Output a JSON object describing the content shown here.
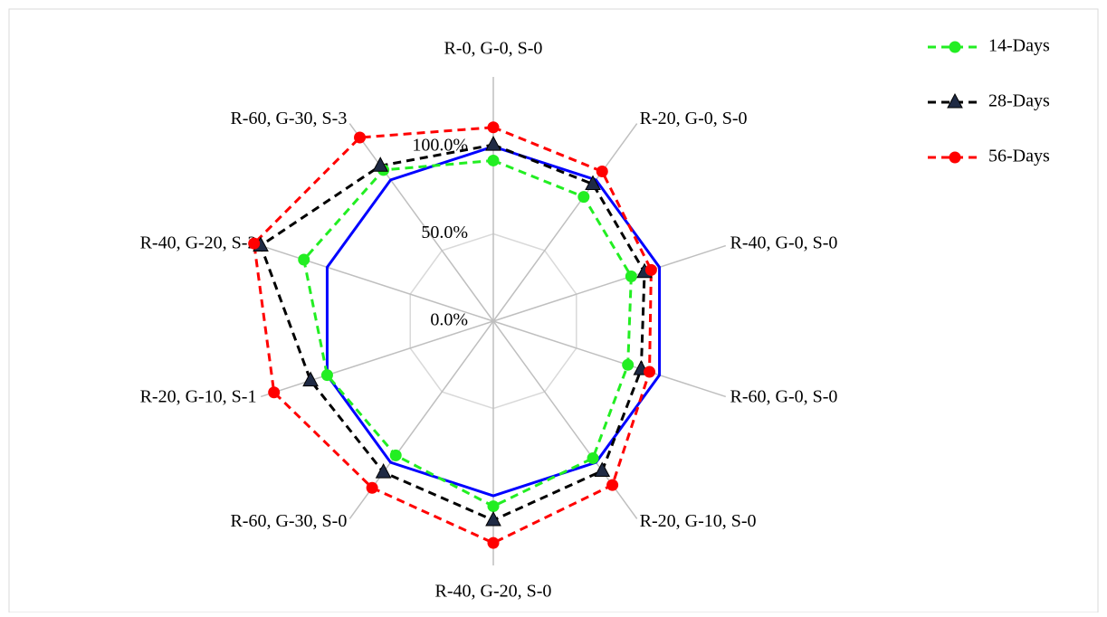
{
  "chart_data": {
    "type": "radar",
    "categories": [
      "R-0, G-0, S-0",
      "R-20, G-0, S-0",
      "R-40, G-0, S-0",
      "R-60, G-0, S-0",
      "R-20, G-10, S-0",
      "R-40, G-20, S-0",
      "R-60, G-30, S-0",
      "R-20, G-10, S-1",
      "R-40, G-20, S-2",
      "R-60, G-30, S-3"
    ],
    "series": [
      {
        "color": "#0000ff",
        "values": [
          100,
          100,
          100,
          100,
          100,
          100,
          100,
          100,
          100,
          100
        ]
      },
      {
        "name": "14-Days",
        "color": "#22ee22",
        "marker": "circle",
        "values": [
          92,
          88,
          83,
          81,
          97,
          106,
          95,
          100,
          114,
          107
        ]
      },
      {
        "name": "28-Days",
        "color": "#000000",
        "marker": "triangle",
        "values": [
          101,
          97,
          91,
          89,
          106,
          114,
          107,
          110,
          140,
          110
        ]
      },
      {
        "name": "56-Days",
        "color": "#ff0000",
        "marker": "circle",
        "values": [
          111,
          106,
          95,
          94,
          116,
          127,
          118,
          132,
          144,
          130
        ]
      }
    ],
    "ylim": [
      0,
      100
    ],
    "yticks": [
      {
        "value": 0,
        "label": "0.0%"
      },
      {
        "value": 50,
        "label": "50.0%"
      },
      {
        "value": 100,
        "label": "100.0%"
      }
    ],
    "grid": true,
    "legend": "right"
  }
}
